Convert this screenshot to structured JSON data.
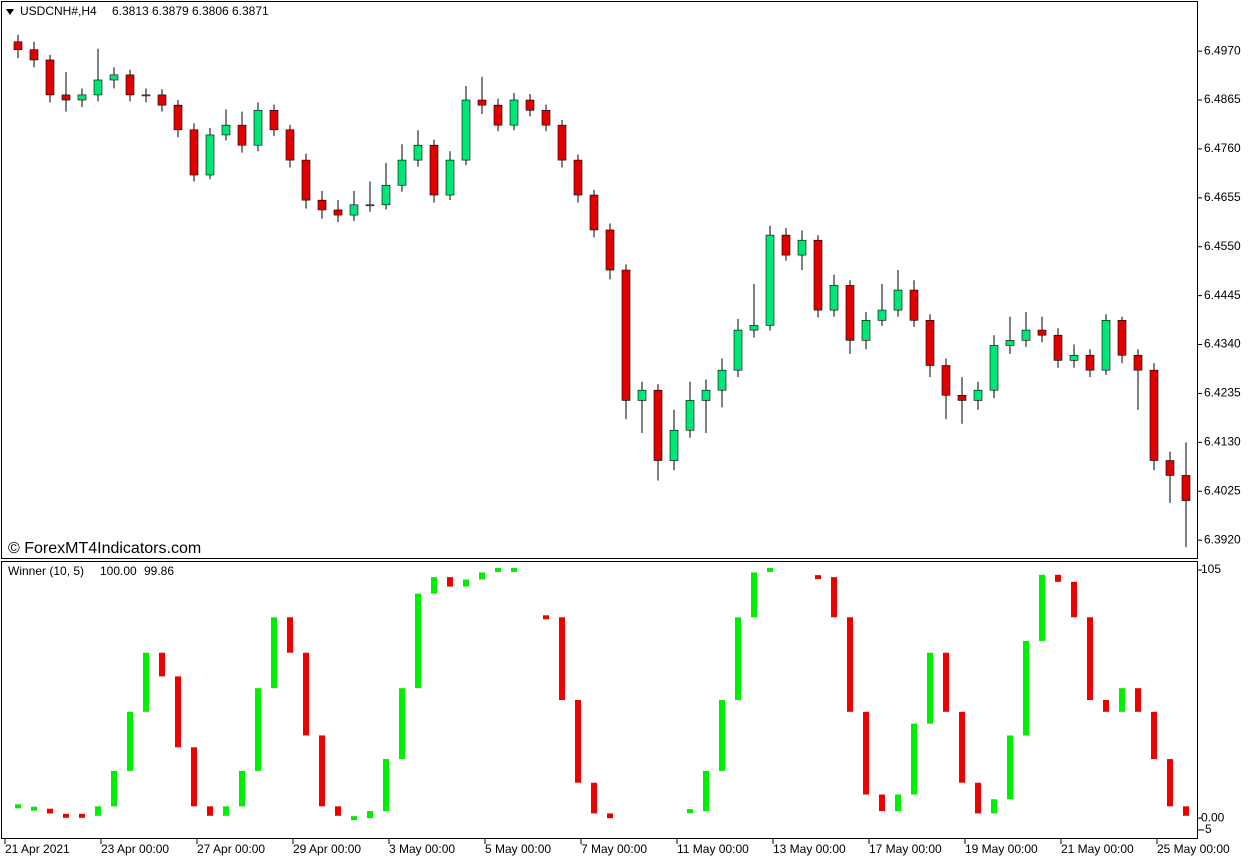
{
  "chart_data": [
    {
      "type": "candlestick",
      "symbol": "USDCNH#,H4",
      "readout": [
        6.3813,
        6.3879,
        6.3806,
        6.3871
      ],
      "watermark": "© ForexMT4Indicators.com",
      "up_color": "#00e676",
      "down_color": "#e00000",
      "wick_color": "#000000",
      "categories": [
        "21 Apr 2021",
        null,
        null,
        null,
        null,
        null,
        "23 Apr 00:00",
        null,
        null,
        null,
        null,
        null,
        "27 Apr 00:00",
        null,
        null,
        null,
        null,
        null,
        "29 Apr 00:00",
        null,
        null,
        null,
        null,
        null,
        "3 May 00:00",
        null,
        null,
        null,
        null,
        null,
        "5 May 00:00",
        null,
        null,
        null,
        null,
        null,
        "7 May 00:00",
        null,
        null,
        null,
        null,
        null,
        "11 May 00:00",
        null,
        null,
        null,
        null,
        null,
        "13 May 00:00",
        null,
        null,
        null,
        null,
        null,
        "17 May 00:00",
        null,
        null,
        null,
        null,
        null,
        "19 May 00:00",
        null,
        null,
        null,
        null,
        null,
        "21 May 00:00",
        null,
        null,
        null,
        null,
        null,
        "25 May 00:00",
        null
      ],
      "open": [
        6.499,
        6.4973,
        6.4951,
        6.4876,
        6.4865,
        6.4876,
        6.4908,
        6.4919,
        6.4876,
        6.4876,
        6.4854,
        6.4801,
        6.4704,
        6.479,
        6.4811,
        6.4768,
        6.4843,
        6.4801,
        6.4736,
        6.465,
        6.4629,
        6.4618,
        6.464,
        6.464,
        6.4682,
        6.4736,
        6.4768,
        6.4661,
        6.4736,
        6.4865,
        6.4854,
        6.4811,
        6.4865,
        6.4843,
        6.4811,
        6.4736,
        6.4661,
        6.4586,
        6.45,
        6.422,
        6.4242,
        6.4091,
        6.4156,
        6.422,
        6.4242,
        6.4285,
        6.4371,
        6.4381,
        6.4575,
        6.4532,
        6.4564,
        6.4414,
        6.4467,
        6.4349,
        6.4392,
        6.4414,
        6.4457,
        6.4392,
        6.4295,
        6.4231,
        6.422,
        6.4242,
        6.4338,
        6.4349,
        6.4371,
        6.436,
        6.4306,
        6.4317,
        6.4285,
        6.4392,
        6.4317,
        6.4285,
        6.4091,
        6.4059
      ],
      "high": [
        6.5005,
        6.499,
        6.4962,
        6.4925,
        6.489,
        6.4975,
        6.4935,
        6.493,
        6.489,
        6.4888,
        6.4865,
        6.4815,
        6.4805,
        6.4845,
        6.484,
        6.486,
        6.4855,
        6.4812,
        6.475,
        6.467,
        6.465,
        6.467,
        6.469,
        6.473,
        6.477,
        6.48,
        6.478,
        6.4755,
        6.4895,
        6.4915,
        6.4868,
        6.488,
        6.4878,
        6.4855,
        6.4822,
        6.4748,
        6.4672,
        6.46,
        6.4512,
        6.426,
        6.4255,
        6.42,
        6.426,
        6.4265,
        6.431,
        6.4395,
        6.447,
        6.4595,
        6.459,
        6.4585,
        6.4575,
        6.449,
        6.4478,
        6.441,
        6.447,
        6.45,
        6.4478,
        6.4405,
        6.431,
        6.427,
        6.426,
        6.436,
        6.44,
        6.441,
        6.44,
        6.4375,
        6.434,
        6.433,
        6.4405,
        6.44,
        6.433,
        6.43,
        6.411,
        6.413
      ],
      "low": [
        6.4955,
        6.4935,
        6.486,
        6.484,
        6.485,
        6.4862,
        6.489,
        6.4862,
        6.486,
        6.484,
        6.4785,
        6.469,
        6.4695,
        6.4778,
        6.4752,
        6.4755,
        6.4788,
        6.472,
        6.4632,
        6.461,
        6.4603,
        6.4605,
        6.4625,
        6.463,
        6.4668,
        6.4722,
        6.4645,
        6.465,
        6.4725,
        6.4835,
        6.4798,
        6.48,
        6.483,
        6.4798,
        6.472,
        6.4645,
        6.457,
        6.448,
        6.418,
        6.415,
        6.4048,
        6.407,
        6.414,
        6.415,
        6.4205,
        6.427,
        6.4355,
        6.437,
        6.452,
        6.45,
        6.4398,
        6.44,
        6.432,
        6.433,
        6.438,
        6.44,
        6.4378,
        6.427,
        6.418,
        6.417,
        6.42,
        6.4225,
        6.432,
        6.4335,
        6.4345,
        6.429,
        6.429,
        6.427,
        6.4275,
        6.43,
        6.42,
        6.407,
        6.4,
        6.3905
      ],
      "close": [
        6.4973,
        6.4951,
        6.4876,
        6.4865,
        6.4876,
        6.4908,
        6.4919,
        6.4876,
        6.4876,
        6.4854,
        6.4801,
        6.4704,
        6.479,
        6.4811,
        6.4768,
        6.4843,
        6.4801,
        6.4736,
        6.465,
        6.4629,
        6.4618,
        6.464,
        6.464,
        6.4682,
        6.4736,
        6.4768,
        6.4661,
        6.4736,
        6.4865,
        6.4854,
        6.4811,
        6.4865,
        6.4843,
        6.4811,
        6.4736,
        6.4661,
        6.4586,
        6.45,
        6.422,
        6.4242,
        6.4091,
        6.4156,
        6.422,
        6.4242,
        6.4285,
        6.4371,
        6.4381,
        6.4575,
        6.4532,
        6.4564,
        6.4414,
        6.4467,
        6.4349,
        6.4392,
        6.4414,
        6.4457,
        6.4392,
        6.4295,
        6.4231,
        6.422,
        6.4242,
        6.4338,
        6.4349,
        6.4371,
        6.436,
        6.4306,
        6.4317,
        6.4285,
        6.4392,
        6.4317,
        6.4285,
        6.4091,
        6.4059,
        6.4005
      ],
      "ylim": [
        6.3886,
        6.5069
      ],
      "yticks": [
        {
          "value": 6.497,
          "label": "6.4970"
        },
        {
          "value": 6.4865,
          "label": "6.4865"
        },
        {
          "value": 6.476,
          "label": "6.4760"
        },
        {
          "value": 6.4655,
          "label": "6.4655"
        },
        {
          "value": 6.455,
          "label": "6.4550"
        },
        {
          "value": 6.4445,
          "label": "6.4445"
        },
        {
          "value": 6.434,
          "label": "6.4340"
        },
        {
          "value": 6.4235,
          "label": "6.4235"
        },
        {
          "value": 6.413,
          "label": "6.4130"
        },
        {
          "value": 6.4025,
          "label": "6.4025"
        },
        {
          "value": 6.392,
          "label": "6.3920"
        }
      ]
    },
    {
      "type": "oscillator",
      "title": "Winner (10, 5)",
      "readout": [
        {
          "value": 100,
          "label": "100.00"
        },
        {
          "value": 99.86,
          "label": "99.86"
        }
      ],
      "series": [
        {
          "color": "#00ee00",
          "values": [
            5,
            4,
            null,
            null,
            null,
            5,
            20,
            45,
            70,
            null,
            null,
            null,
            null,
            5,
            20,
            55,
            85,
            null,
            null,
            null,
            null,
            0,
            3,
            25,
            55,
            95,
            102,
            null,
            101,
            104,
            105,
            105,
            null,
            null,
            null,
            null,
            null,
            null,
            null,
            null,
            null,
            null,
            3,
            20,
            50,
            85,
            104,
            105,
            null,
            null,
            null,
            null,
            null,
            null,
            null,
            10,
            40,
            70,
            null,
            null,
            null,
            8,
            35,
            75,
            103,
            null,
            null,
            null,
            null,
            55,
            null,
            null,
            null,
            null
          ]
        },
        {
          "color": "#ee0000",
          "values": [
            null,
            null,
            2,
            1,
            1,
            null,
            null,
            null,
            null,
            60,
            30,
            5,
            1,
            null,
            null,
            null,
            null,
            70,
            35,
            5,
            1,
            null,
            null,
            null,
            null,
            null,
            null,
            98,
            null,
            null,
            null,
            null,
            null,
            85,
            50,
            15,
            2,
            0,
            null,
            null,
            null,
            null,
            null,
            null,
            null,
            null,
            null,
            null,
            null,
            null,
            102,
            85,
            45,
            10,
            3,
            null,
            null,
            null,
            45,
            15,
            2,
            null,
            null,
            null,
            null,
            100,
            85,
            50,
            45,
            null,
            45,
            25,
            5,
            1
          ]
        }
      ],
      "ylim": [
        -8.4,
        108.4
      ],
      "yticks": [
        105,
        {
          "value": 0,
          "label": "0.00"
        },
        -5
      ]
    }
  ]
}
